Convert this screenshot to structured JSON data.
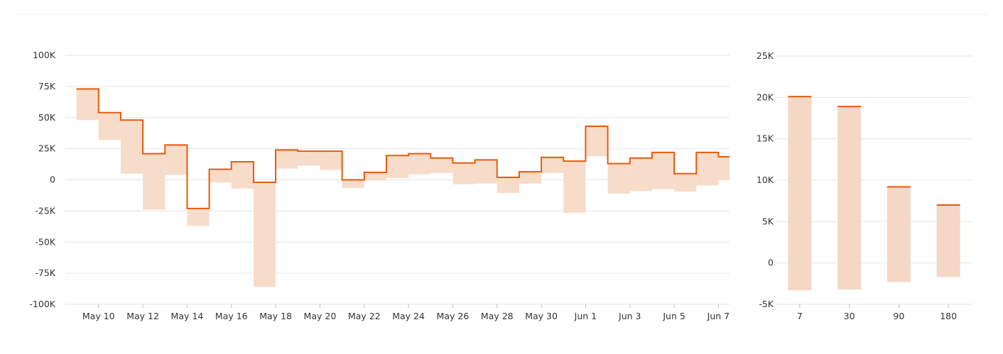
{
  "colors": {
    "line": "#e8590c",
    "band": "#f7dcc9",
    "bar": "#f4d7c4",
    "grid": "#e6e6e6",
    "text": "#333333"
  },
  "chart_data": [
    {
      "type": "line",
      "title": "",
      "xlabel": "",
      "ylabel": "",
      "interpolation": "step",
      "grid": true,
      "ylim": [
        -100000,
        100000
      ],
      "yticks": [
        {
          "value": 100000,
          "label": "100K"
        },
        {
          "value": 75000,
          "label": "75K"
        },
        {
          "value": 50000,
          "label": "50K"
        },
        {
          "value": 25000,
          "label": "25K"
        },
        {
          "value": 0,
          "label": "0"
        },
        {
          "value": -25000,
          "label": "-25K"
        },
        {
          "value": -50000,
          "label": "-50K"
        },
        {
          "value": -75000,
          "label": "-75K"
        },
        {
          "value": -100000,
          "label": "-100K"
        }
      ],
      "xlim": [
        "2024-05-08T12",
        "2024-06-07T12"
      ],
      "xticks": [
        {
          "date": "2024-05-10",
          "label": "May 10"
        },
        {
          "date": "2024-05-12",
          "label": "May 12"
        },
        {
          "date": "2024-05-14",
          "label": "May 14"
        },
        {
          "date": "2024-05-16",
          "label": "May 16"
        },
        {
          "date": "2024-05-18",
          "label": "May 18"
        },
        {
          "date": "2024-05-20",
          "label": "May 20"
        },
        {
          "date": "2024-05-22",
          "label": "May 22"
        },
        {
          "date": "2024-05-24",
          "label": "May 24"
        },
        {
          "date": "2024-05-26",
          "label": "May 26"
        },
        {
          "date": "2024-05-28",
          "label": "May 28"
        },
        {
          "date": "2024-05-30",
          "label": "May 30"
        },
        {
          "date": "2024-06-01",
          "label": "Jun 1"
        },
        {
          "date": "2024-06-03",
          "label": "Jun 3"
        },
        {
          "date": "2024-06-05",
          "label": "Jun 5"
        },
        {
          "date": "2024-06-07",
          "label": "Jun 7"
        }
      ],
      "steps": [
        {
          "date": "2024-05-09",
          "value": 73000,
          "band_low": 48000
        },
        {
          "date": "2024-05-10",
          "value": 54000,
          "band_low": 32000
        },
        {
          "date": "2024-05-11",
          "value": 48000,
          "band_low": 5000
        },
        {
          "date": "2024-05-12",
          "value": 21000,
          "band_low": -24000
        },
        {
          "date": "2024-05-13",
          "value": 28000,
          "band_low": 4000
        },
        {
          "date": "2024-05-14",
          "value": -23000,
          "band_low": -37000
        },
        {
          "date": "2024-05-15",
          "value": 8500,
          "band_low": -2000
        },
        {
          "date": "2024-05-16",
          "value": 14500,
          "band_low": -7000
        },
        {
          "date": "2024-05-17",
          "value": -2000,
          "band_low": -86000
        },
        {
          "date": "2024-05-18",
          "value": 24000,
          "band_low": 9000
        },
        {
          "date": "2024-05-19",
          "value": 23000,
          "band_low": 11500
        },
        {
          "date": "2024-05-20",
          "value": 23000,
          "band_low": 8000
        },
        {
          "date": "2024-05-21",
          "value": 0,
          "band_low": -6500
        },
        {
          "date": "2024-05-22",
          "value": 6000,
          "band_low": -500
        },
        {
          "date": "2024-05-23",
          "value": 19500,
          "band_low": 1500
        },
        {
          "date": "2024-05-24",
          "value": 21000,
          "band_low": 4500
        },
        {
          "date": "2024-05-25",
          "value": 17500,
          "band_low": 5500
        },
        {
          "date": "2024-05-26",
          "value": 13500,
          "band_low": -3500
        },
        {
          "date": "2024-05-27",
          "value": 16000,
          "band_low": -3000
        },
        {
          "date": "2024-05-28",
          "value": 2000,
          "band_low": -10500
        },
        {
          "date": "2024-05-29",
          "value": 6500,
          "band_low": -3000
        },
        {
          "date": "2024-05-30",
          "value": 18000,
          "band_low": 5500
        },
        {
          "date": "2024-05-31",
          "value": 15000,
          "band_low": -26500
        },
        {
          "date": "2024-06-01",
          "value": 43000,
          "band_low": 19000
        },
        {
          "date": "2024-06-02",
          "value": 13000,
          "band_low": -11000
        },
        {
          "date": "2024-06-03",
          "value": 17500,
          "band_low": -9000
        },
        {
          "date": "2024-06-04",
          "value": 22000,
          "band_low": -7500
        },
        {
          "date": "2024-06-05",
          "value": 5000,
          "band_low": -9500
        },
        {
          "date": "2024-06-06",
          "value": 22000,
          "band_low": -4500
        },
        {
          "date": "2024-06-07",
          "value": 18500,
          "band_low": 0
        }
      ]
    },
    {
      "type": "bar",
      "title": "",
      "xlabel": "",
      "ylabel": "",
      "grid": true,
      "ylim": [
        -5000,
        25000
      ],
      "yticks": [
        {
          "value": 25000,
          "label": "25K"
        },
        {
          "value": 20000,
          "label": "20K"
        },
        {
          "value": 15000,
          "label": "15K"
        },
        {
          "value": 10000,
          "label": "10K"
        },
        {
          "value": 5000,
          "label": "5K"
        },
        {
          "value": 0,
          "label": "0"
        },
        {
          "value": -5000,
          "label": "-5K"
        }
      ],
      "categories": [
        "7",
        "30",
        "90",
        "180"
      ],
      "values": [
        20100,
        18900,
        9200,
        7000
      ],
      "band_low": [
        -3300,
        -3200,
        -2300,
        -1700
      ]
    }
  ]
}
